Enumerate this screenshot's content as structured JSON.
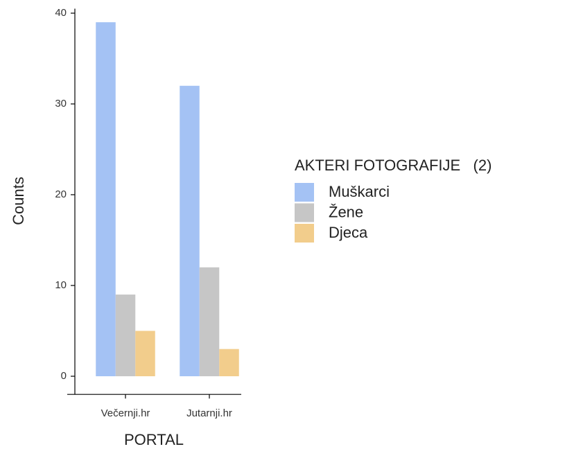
{
  "chart_data": {
    "type": "bar",
    "categories": [
      "Večernji.hr",
      "Jutarnji.hr"
    ],
    "series": [
      {
        "name": "Muškarci",
        "color": "#a4c2f4",
        "values": [
          39,
          32
        ]
      },
      {
        "name": "Žene",
        "color": "#c6c6c6",
        "values": [
          9,
          12
        ]
      },
      {
        "name": "Djeca",
        "color": "#f2cd8c",
        "values": [
          5,
          3
        ]
      }
    ],
    "ylim": [
      -2,
      40.5
    ],
    "yticks": [
      0,
      10,
      20,
      30,
      40
    ],
    "x_label": "PORTAL",
    "y_label": "Counts",
    "legend_title": "AKTERI FOTOGRAFIJE   (2)",
    "legend_position": "right"
  }
}
